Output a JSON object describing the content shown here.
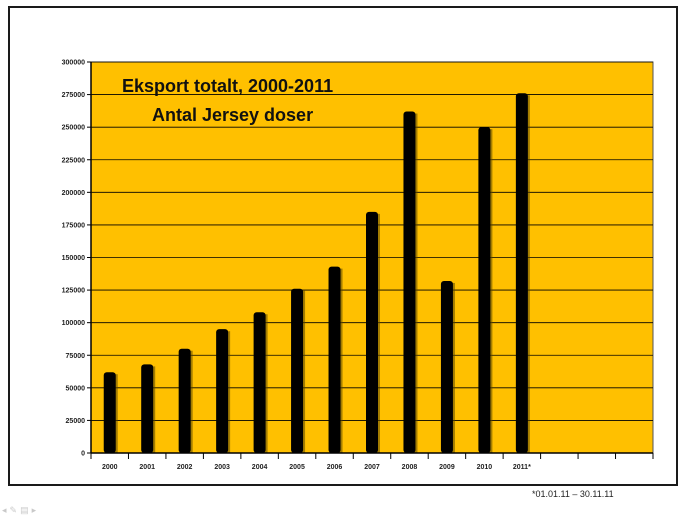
{
  "chart_data": {
    "type": "bar",
    "title": "Eksport totalt, 2000-2011",
    "subtitle": "Antal Jersey doser",
    "categories": [
      "2000",
      "2001",
      "2002",
      "2003",
      "2004",
      "2005",
      "2006",
      "2007",
      "2008",
      "2009",
      "2010",
      "2011*"
    ],
    "extra_slots": 3,
    "values": [
      62000,
      68000,
      80000,
      95000,
      108000,
      126000,
      143000,
      185000,
      262000,
      132000,
      250000,
      276000
    ],
    "ylim": [
      0,
      300000
    ],
    "yticks": [
      "0",
      "25000",
      "50000",
      "75000",
      "100000",
      "125000",
      "150000",
      "175000",
      "200000",
      "225000",
      "250000",
      "275000",
      "300000"
    ],
    "grid": true,
    "colors": {
      "plot_bg": "#FFC000",
      "bar": "#000000",
      "grid": "#000000"
    }
  },
  "footnote": "*01.01.11 – 30.11.11",
  "nav": {
    "icons": [
      "arrow-left-icon",
      "pen-icon",
      "menu-icon",
      "arrow-right-icon"
    ]
  }
}
